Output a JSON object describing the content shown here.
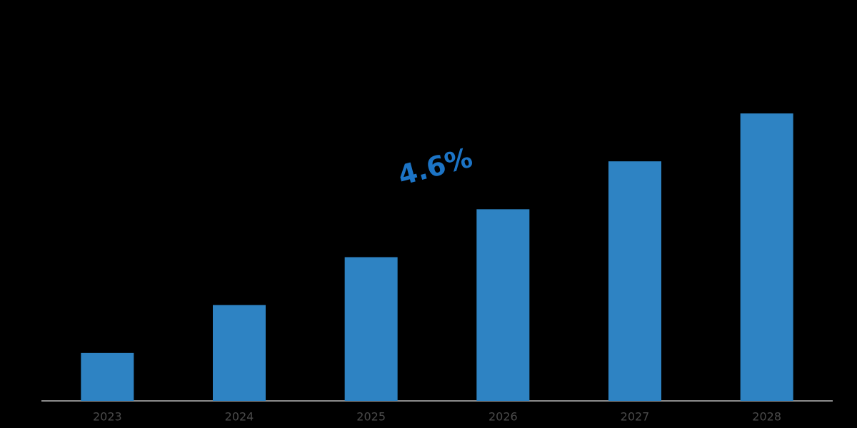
{
  "chart_data": {
    "type": "bar",
    "categories": [
      "2023",
      "2024",
      "2025",
      "2026",
      "2027",
      "2028"
    ],
    "values": [
      1,
      2,
      3,
      4,
      5,
      6
    ],
    "color": "#2e83c3",
    "annotation": "4.6%",
    "annotation_color": "#1c74c6"
  }
}
